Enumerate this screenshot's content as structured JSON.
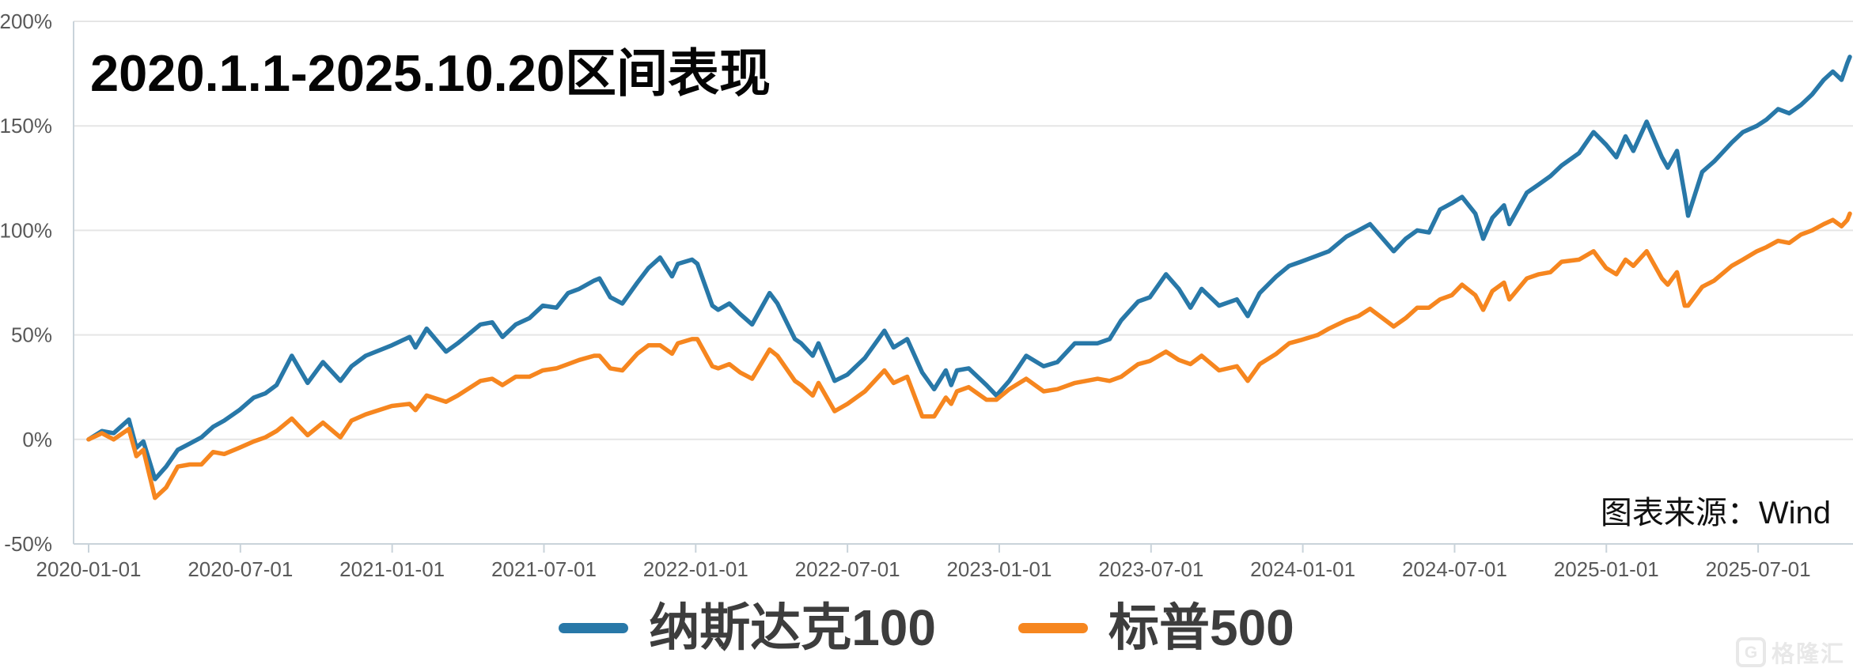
{
  "title": "2020.1.1-2025.10.20区间表现",
  "source_note": "图表来源：Wind",
  "watermark": {
    "logo_letter": "G",
    "text": "格隆汇"
  },
  "colors": {
    "nasdaq_line": "#2878A8",
    "sp500_line": "#F6861F",
    "grid_line": "#e5e5e5",
    "axis_line": "#c9d3da",
    "tick_label": "#595959",
    "title_text": "#050505",
    "legend_text": "#3d3d3d"
  },
  "chart_data": {
    "type": "line",
    "title": "2020.1.1-2025.10.20区间表现",
    "xlabel": "",
    "ylabel": "",
    "grid": "horizontal",
    "legend_position": "bottom-center",
    "ylim": [
      -50,
      200
    ],
    "y_ticks": [
      {
        "value": 200,
        "label": "200%"
      },
      {
        "value": 150,
        "label": "150%"
      },
      {
        "value": 100,
        "label": "100%"
      },
      {
        "value": 50,
        "label": "50%"
      },
      {
        "value": 0,
        "label": "0%"
      },
      {
        "value": -50,
        "label": "-50%"
      }
    ],
    "x_range": [
      "2020-01-01",
      "2025-10-20"
    ],
    "x_tick_labels": [
      "2020-01-01",
      "2020-07-01",
      "2021-01-01",
      "2021-07-01",
      "2022-01-01",
      "2022-07-01",
      "2023-01-01",
      "2023-07-01",
      "2024-01-01",
      "2024-07-01",
      "2025-01-01",
      "2025-07-01"
    ],
    "unit": "percent cumulative return",
    "dates": [
      "2020-01-01",
      "2020-01-17",
      "2020-01-31",
      "2020-02-19",
      "2020-02-28",
      "2020-03-06",
      "2020-03-20",
      "2020-04-03",
      "2020-04-17",
      "2020-05-01",
      "2020-05-15",
      "2020-05-29",
      "2020-06-12",
      "2020-06-30",
      "2020-07-17",
      "2020-07-31",
      "2020-08-14",
      "2020-09-02",
      "2020-09-21",
      "2020-10-09",
      "2020-10-30",
      "2020-11-13",
      "2020-11-30",
      "2020-12-31",
      "2021-01-22",
      "2021-01-29",
      "2021-02-12",
      "2021-03-05",
      "2021-03-19",
      "2021-04-16",
      "2021-04-30",
      "2021-05-12",
      "2021-05-28",
      "2021-06-14",
      "2021-06-30",
      "2021-07-16",
      "2021-07-30",
      "2021-08-13",
      "2021-08-31",
      "2021-09-07",
      "2021-09-20",
      "2021-10-04",
      "2021-10-22",
      "2021-11-05",
      "2021-11-19",
      "2021-12-03",
      "2021-12-10",
      "2021-12-27",
      "2022-01-03",
      "2022-01-21",
      "2022-01-28",
      "2022-02-11",
      "2022-02-24",
      "2022-03-08",
      "2022-03-29",
      "2022-04-08",
      "2022-04-29",
      "2022-05-06",
      "2022-05-20",
      "2022-05-27",
      "2022-06-16",
      "2022-07-01",
      "2022-07-22",
      "2022-08-15",
      "2022-08-26",
      "2022-09-12",
      "2022-09-30",
      "2022-10-14",
      "2022-10-28",
      "2022-11-04",
      "2022-11-11",
      "2022-11-25",
      "2022-12-16",
      "2022-12-28",
      "2023-01-13",
      "2023-02-03",
      "2023-02-24",
      "2023-03-10",
      "2023-03-31",
      "2023-04-28",
      "2023-05-12",
      "2023-05-26",
      "2023-06-16",
      "2023-06-30",
      "2023-07-19",
      "2023-08-04",
      "2023-08-18",
      "2023-09-01",
      "2023-09-22",
      "2023-10-13",
      "2023-10-26",
      "2023-11-10",
      "2023-11-30",
      "2023-12-15",
      "2023-12-29",
      "2024-01-19",
      "2024-02-02",
      "2024-02-23",
      "2024-03-07",
      "2024-03-21",
      "2024-04-19",
      "2024-05-03",
      "2024-05-17",
      "2024-05-31",
      "2024-06-14",
      "2024-06-28",
      "2024-07-10",
      "2024-07-26",
      "2024-08-05",
      "2024-08-16",
      "2024-08-30",
      "2024-09-06",
      "2024-09-27",
      "2024-10-11",
      "2024-10-25",
      "2024-11-08",
      "2024-11-29",
      "2024-12-16",
      "2024-12-31",
      "2025-01-13",
      "2025-01-24",
      "2025-02-03",
      "2025-02-19",
      "2025-03-07",
      "2025-03-14",
      "2025-03-25",
      "2025-04-04",
      "2025-04-08",
      "2025-04-25",
      "2025-05-09",
      "2025-05-30",
      "2025-06-13",
      "2025-06-30",
      "2025-07-11",
      "2025-07-25",
      "2025-08-08",
      "2025-08-22",
      "2025-09-05",
      "2025-09-19",
      "2025-09-30",
      "2025-10-10",
      "2025-10-17",
      "2025-10-20"
    ],
    "series": [
      {
        "name": "纳斯达克100",
        "color": "#2878A8",
        "values": [
          0,
          4,
          3,
          9.5,
          -4,
          -1,
          -19,
          -13,
          -5,
          -2,
          1,
          6,
          9,
          14,
          20,
          22,
          26,
          40,
          27,
          37,
          28,
          35,
          40,
          45,
          49,
          44,
          53,
          42,
          46,
          55,
          56,
          49,
          55,
          58,
          64,
          63,
          70,
          72,
          76,
          77,
          68,
          65,
          75,
          82,
          87,
          78,
          84,
          86,
          84,
          64,
          62,
          65,
          60,
          55,
          70,
          65,
          48,
          46,
          40,
          46,
          28,
          31,
          39,
          52,
          44,
          48,
          32,
          24,
          33,
          26,
          33,
          34,
          26,
          21,
          28,
          40,
          35,
          37,
          46,
          46,
          48,
          57,
          66,
          68,
          79,
          72,
          63,
          72,
          64,
          67,
          59,
          70,
          78,
          83,
          85,
          88,
          90,
          97,
          100,
          103,
          90,
          96,
          100,
          99,
          110,
          113,
          116,
          108,
          96,
          106,
          112,
          103,
          118,
          122,
          126,
          131,
          137,
          147,
          141,
          135,
          145,
          138,
          152,
          135,
          130,
          138,
          117,
          107,
          128,
          133,
          142,
          147,
          150,
          153,
          158,
          156,
          160,
          165,
          172,
          176,
          172,
          180,
          183
        ]
      },
      {
        "name": "标普500",
        "color": "#F6861F",
        "values": [
          0,
          3,
          0,
          5,
          -8,
          -5,
          -28,
          -23,
          -13,
          -12,
          -12,
          -6,
          -7,
          -4,
          -1,
          1,
          4,
          10,
          2,
          8,
          1,
          9,
          12,
          16,
          17,
          14,
          21,
          18,
          21,
          28,
          29,
          26,
          30,
          30,
          33,
          34,
          36,
          38,
          40,
          40,
          34,
          33,
          41,
          45,
          45,
          41,
          46,
          48,
          48,
          35,
          34,
          36,
          32,
          29,
          43,
          40,
          28,
          26,
          21,
          27,
          13.5,
          17,
          23,
          33,
          27,
          30,
          11,
          11,
          20,
          17,
          23,
          25,
          19,
          19,
          24,
          29,
          23,
          24,
          27,
          29,
          28,
          30,
          36,
          37.5,
          42,
          38,
          36,
          40,
          33,
          35,
          28,
          36,
          41,
          46,
          47.5,
          50,
          53,
          57,
          59,
          62.5,
          54,
          58,
          63,
          63,
          67,
          69,
          74,
          69,
          62,
          71,
          75,
          67,
          77,
          79,
          80,
          85,
          86,
          90,
          82,
          79,
          86,
          83,
          90,
          77,
          74,
          80,
          64,
          64,
          73,
          76,
          83,
          86,
          90,
          92,
          95,
          94,
          98,
          100,
          103,
          105,
          102,
          105,
          108
        ]
      }
    ]
  }
}
